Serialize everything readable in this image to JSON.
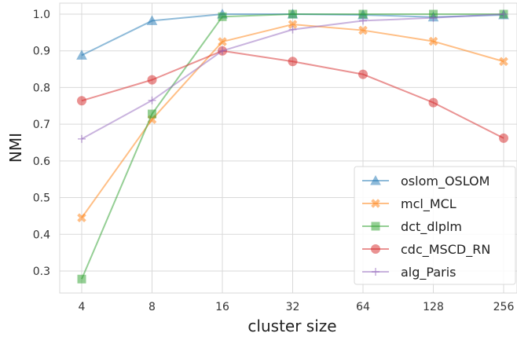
{
  "chart_data": {
    "type": "line",
    "title": "",
    "xlabel": "cluster size",
    "ylabel": "NMI",
    "categories": [
      "4",
      "8",
      "16",
      "32",
      "64",
      "128",
      "256"
    ],
    "x_scale": "log2",
    "ylim": [
      0.24,
      1.03
    ],
    "yticks": [
      "0.3",
      "0.4",
      "0.5",
      "0.6",
      "0.7",
      "0.8",
      "0.9",
      "1.0"
    ],
    "grid": true,
    "legend_position": "lower-right",
    "series": [
      {
        "name": "oslom_OSLOM",
        "color": "#1f77b4",
        "marker": "triangle",
        "values": [
          0.888,
          0.982,
          1.0,
          1.0,
          0.998,
          0.992,
          0.998
        ]
      },
      {
        "name": "mcl_MCL",
        "color": "#ff7f0e",
        "marker": "x-filled",
        "values": [
          0.445,
          0.713,
          0.925,
          0.972,
          0.956,
          0.926,
          0.871
        ]
      },
      {
        "name": "dct_dlplm",
        "color": "#2ca02c",
        "marker": "square",
        "values": [
          0.278,
          0.728,
          0.993,
          1.0,
          1.0,
          1.0,
          1.0
        ]
      },
      {
        "name": "cdc_MSCD_RN",
        "color": "#d62728",
        "marker": "circle",
        "values": [
          0.764,
          0.821,
          0.9,
          0.871,
          0.836,
          0.759,
          0.662
        ]
      },
      {
        "name": "alg_Paris",
        "color": "#9467bd",
        "marker": "plus",
        "values": [
          0.66,
          0.765,
          0.9,
          0.958,
          0.982,
          0.99,
          1.0
        ]
      }
    ]
  }
}
